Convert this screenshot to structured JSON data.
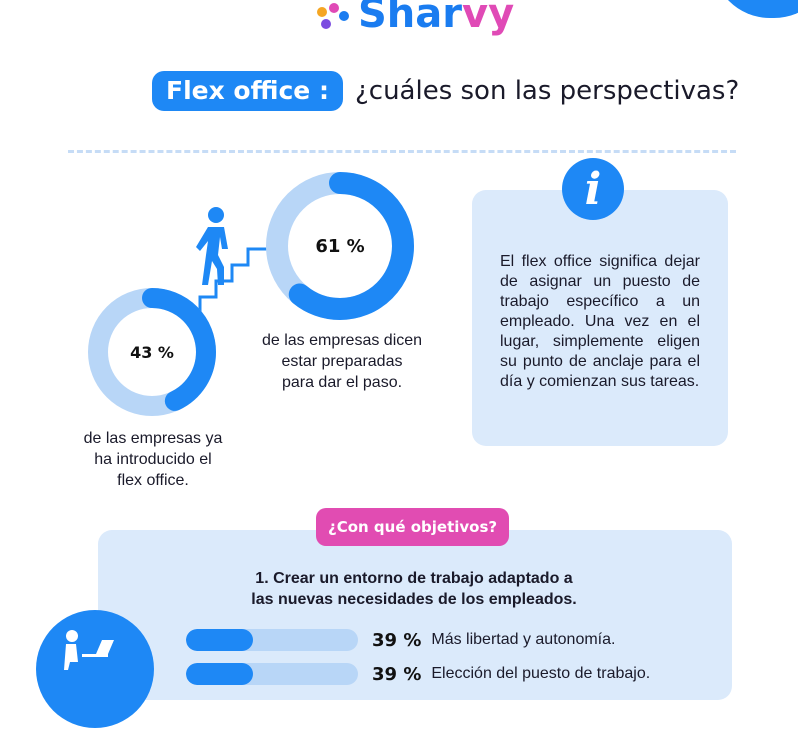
{
  "brand": {
    "name_part1": "Shar",
    "name_part2": "vy",
    "logo_icon": "sharvy-logo-icon"
  },
  "title": {
    "pill": "Flex office :",
    "rest": "¿cuáles son las perspectivas?"
  },
  "stats": [
    {
      "value": 61,
      "label": "61 %",
      "caption_lines": [
        "de las empresas dicen",
        "estar preparadas",
        "para dar el paso."
      ]
    },
    {
      "value": 43,
      "label": "43 %",
      "caption_lines": [
        "de las empresas ya",
        "ha introducido el",
        "flex office."
      ]
    }
  ],
  "info": {
    "icon": "info-icon",
    "icon_glyph": "i",
    "text": "El flex office significa dejar de asignar un puesto de trabajo específico a un empleado. Una vez en el lugar, simplemente eligen su punto de anclaje para el día y comienzan sus tareas."
  },
  "objectives": {
    "pill": "¿Con qué objetivos?",
    "heading_lines": [
      "1. Crear un entorno de trabajo adaptado a",
      "las nuevas necesidades de los empleados."
    ],
    "bars": [
      {
        "value": 39,
        "label": "39 %",
        "text": "Más libertad y autonomía."
      },
      {
        "value": 39,
        "label": "39 %",
        "text": "Elección del puesto de trabajo."
      }
    ]
  },
  "colors": {
    "blue": "#1e88f5",
    "light_blue": "#b8d6f7",
    "pink": "#e14cb2",
    "panel": "#dbeafb"
  }
}
